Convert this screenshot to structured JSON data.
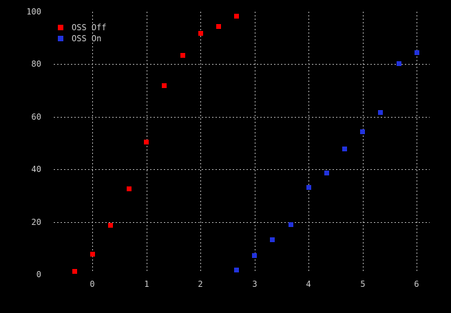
{
  "chart_data": {
    "type": "scatter",
    "title": "",
    "xlabel": "",
    "ylabel": "",
    "xlim": [
      -0.72,
      6.24
    ],
    "ylim": [
      0,
      100
    ],
    "xticks": [
      0,
      1,
      2,
      3,
      4,
      5,
      6
    ],
    "yticks": [
      0,
      20,
      40,
      60,
      80,
      100
    ],
    "grid": {
      "horizontal_at": [
        20,
        40,
        60,
        80
      ],
      "vertical_at": [
        0,
        1,
        2,
        3,
        4,
        5,
        6
      ],
      "style": "dotted",
      "color": "#b8b8b8"
    },
    "legend_position": "top-left",
    "background_color": "#000000",
    "text_color": "#cccccc",
    "marker": "square",
    "series": [
      {
        "name": "OSS Off",
        "color": "#ff0000",
        "points": [
          [
            -0.33,
            1.3
          ],
          [
            0.0,
            7.7
          ],
          [
            0.33,
            18.8
          ],
          [
            0.67,
            32.7
          ],
          [
            1.0,
            50.4
          ],
          [
            1.33,
            71.9
          ],
          [
            1.67,
            83.5
          ],
          [
            2.0,
            91.7
          ],
          [
            2.33,
            94.3
          ],
          [
            2.67,
            98.2
          ]
        ]
      },
      {
        "name": "OSS On",
        "color": "#2233dd",
        "points": [
          [
            2.67,
            1.7
          ],
          [
            3.0,
            7.2
          ],
          [
            3.33,
            13.3
          ],
          [
            3.67,
            19.0
          ],
          [
            4.0,
            33.1
          ],
          [
            4.33,
            38.6
          ],
          [
            4.67,
            47.8
          ],
          [
            5.0,
            54.3
          ],
          [
            5.33,
            61.6
          ],
          [
            5.67,
            80.3
          ],
          [
            6.0,
            84.5
          ]
        ]
      }
    ]
  }
}
